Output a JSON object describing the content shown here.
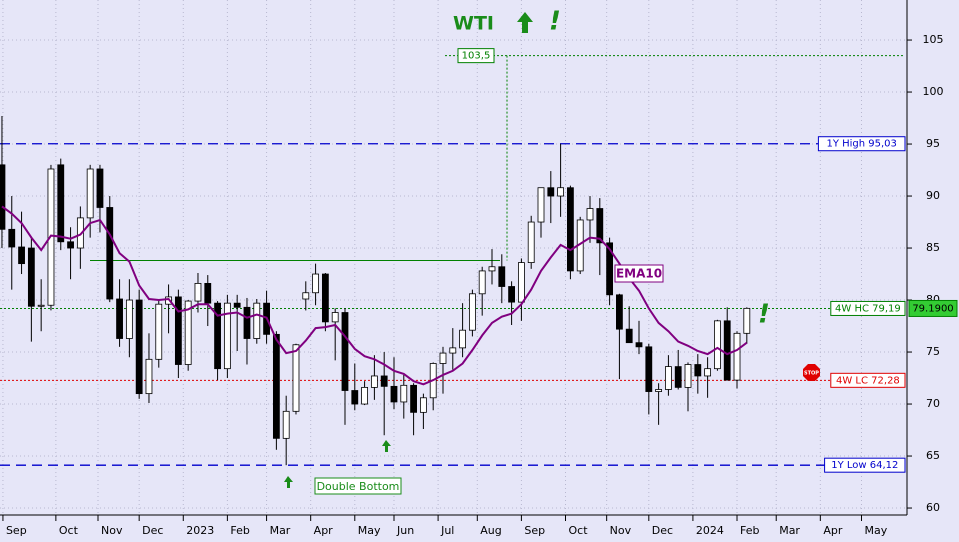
{
  "chart_data": {
    "type": "candlestick",
    "title": "WTI",
    "xlim": [
      -0.2,
      92.14
    ],
    "ylim": [
      59.33,
      108.85
    ],
    "yticks": [
      60,
      65,
      70,
      75,
      80,
      85,
      90,
      95,
      100,
      105
    ],
    "xticks": [
      {
        "value": 0.1,
        "label": "Sep"
      },
      {
        "value": 5.5,
        "label": "Oct"
      },
      {
        "value": 9.8,
        "label": "Nov"
      },
      {
        "value": 14,
        "label": "Dec"
      },
      {
        "value": 18.5,
        "label": "2023"
      },
      {
        "value": 23,
        "label": "Feb"
      },
      {
        "value": 27,
        "label": "Mar"
      },
      {
        "value": 31.5,
        "label": "Apr"
      },
      {
        "value": 36,
        "label": "May"
      },
      {
        "value": 40,
        "label": "Jun"
      },
      {
        "value": 44.5,
        "label": "Jul"
      },
      {
        "value": 48.5,
        "label": "Aug"
      },
      {
        "value": 53,
        "label": "Sep"
      },
      {
        "value": 57.5,
        "label": "Oct"
      },
      {
        "value": 61.7,
        "label": "Nov"
      },
      {
        "value": 66,
        "label": "Dec"
      },
      {
        "value": 70.5,
        "label": "2024"
      },
      {
        "value": 75,
        "label": "Feb"
      },
      {
        "value": 79,
        "label": "Mar"
      },
      {
        "value": 83.5,
        "label": "Apr"
      },
      {
        "value": 87.7,
        "label": "May"
      }
    ],
    "grid": true,
    "candles": {
      "up_color": "#ffffff",
      "down_color": "#000000",
      "open": [
        93,
        86.8,
        85.1,
        85,
        79.4,
        79.5,
        93,
        85.6,
        85,
        87.9,
        92.6,
        88.9,
        80.1,
        76.3,
        80,
        71,
        74.3,
        79.6,
        80.3,
        73.8,
        79.9,
        81.6,
        79.7,
        73.4,
        79.7,
        79.3,
        76.3,
        79.7,
        76.7,
        66.7,
        69.3,
        80.1,
        80.7,
        82.5,
        77.9,
        78.8,
        71.3,
        70,
        71.6,
        72.7,
        71.7,
        70.2,
        71.8,
        69.2,
        70.6,
        73.9,
        74.9,
        75.4,
        77.1,
        80.6,
        82.8,
        83.2,
        81.3,
        79.8,
        83.6,
        87.5,
        90.8,
        90,
        90.8,
        82.8,
        87.7,
        88.8,
        85.5,
        80.5,
        77.2,
        75.9,
        75.5,
        71.2,
        71.4,
        73.6,
        71.6,
        73.8,
        72.7,
        73.4,
        78,
        72.3,
        76.8
      ],
      "high": [
        97.7,
        90,
        88.5,
        86,
        82,
        93,
        93.6,
        87,
        89,
        93,
        93,
        90,
        82,
        82,
        81,
        76.8,
        80,
        81.5,
        81,
        80,
        82.6,
        82.4,
        79.9,
        80.5,
        80.5,
        80.2,
        80.1,
        80.9,
        77,
        70.8,
        75.8,
        81.8,
        83.5,
        82.6,
        79.2,
        79.2,
        73.9,
        72.2,
        74.7,
        75,
        74.5,
        72.8,
        72,
        71,
        74,
        75.5,
        77.3,
        79.7,
        81,
        83.2,
        84.9,
        84.4,
        81.8,
        84,
        88.1,
        90.5,
        92.4,
        95.03,
        91,
        88,
        90,
        89.8,
        86,
        80.6,
        79.4,
        78,
        75.8,
        72,
        74.7,
        75.2,
        74,
        74.8,
        74.5,
        78.1,
        79.3,
        77,
        79.3
      ],
      "low": [
        85,
        81,
        82.5,
        76,
        77,
        79,
        84.8,
        82,
        83,
        86,
        86.5,
        79.8,
        75.5,
        74.5,
        70.5,
        70.1,
        73.5,
        76.8,
        72.5,
        73.2,
        78.8,
        77.5,
        72.3,
        72.5,
        75.1,
        73.8,
        75.8,
        75.8,
        65.6,
        64.12,
        69,
        79,
        79.5,
        77,
        74.2,
        68,
        69.4,
        69.9,
        70.4,
        67,
        69.5,
        68.6,
        67,
        67.6,
        69.4,
        71,
        73.3,
        74.5,
        76.5,
        78.5,
        81.5,
        79.7,
        77.6,
        78,
        83,
        86,
        87.4,
        88,
        82,
        82.5,
        85.5,
        82.4,
        79.5,
        72.4,
        76,
        74.8,
        69,
        68,
        70.8,
        71.4,
        69.3,
        71,
        70.6,
        73.2,
        72.3,
        71.5,
        75.8
      ],
      "close": [
        86.8,
        85.1,
        83.5,
        79.4,
        79.5,
        92.6,
        85.6,
        85,
        87.9,
        92.6,
        88.9,
        80.1,
        76.3,
        80,
        71,
        74.3,
        79.6,
        80.3,
        73.8,
        79.9,
        81.6,
        79.7,
        73.4,
        79.7,
        79.3,
        76.3,
        79.7,
        76.7,
        66.7,
        69.3,
        75.7,
        80.7,
        82.5,
        77.9,
        78.8,
        71.3,
        70,
        71.6,
        72.7,
        71.7,
        70.2,
        71.8,
        69.2,
        70.6,
        73.9,
        74.9,
        75.4,
        77.1,
        80.6,
        82.8,
        83.2,
        81.3,
        79.8,
        83.6,
        87.5,
        90.8,
        90,
        90.8,
        82.8,
        87.7,
        88.8,
        85.5,
        80.5,
        77.2,
        75.9,
        75.5,
        71.2,
        71.4,
        73.6,
        71.6,
        73.8,
        72.7,
        73.4,
        78,
        72.3,
        76.8,
        79.2
      ]
    },
    "ema": {
      "name": "EMA10",
      "color": "#800080",
      "values": [
        89,
        88.3,
        87.4,
        86,
        84.8,
        86.2,
        86.1,
        85.9,
        86.3,
        87.4,
        87.7,
        86.3,
        84.5,
        83.7,
        81.4,
        80.1,
        80,
        80.1,
        78.9,
        79.1,
        79.6,
        79.6,
        78.5,
        78.7,
        78.8,
        78.3,
        78.6,
        78.3,
        76.2,
        74.9,
        75.1,
        76.1,
        77.3,
        77.4,
        77.6,
        76.5,
        75.3,
        74.6,
        74.3,
        73.8,
        73.2,
        72.9,
        72.2,
        71.9,
        72.3,
        72.8,
        73.2,
        73.9,
        75.2,
        76.6,
        77.8,
        78.4,
        78.7,
        79.6,
        81,
        82.8,
        84.1,
        85.3,
        84.8,
        85.4,
        86,
        85.9,
        84.9,
        83.5,
        82.1,
        80.9,
        79.2,
        77.8,
        77,
        76,
        75.6,
        75.1,
        74.8,
        75.4,
        74.8,
        75.2,
        75.9
      ]
    },
    "levels": [
      {
        "value": 95.03,
        "label": "1Y High 95,03",
        "color": "#0000cc",
        "style": "dashed"
      },
      {
        "value": 64.12,
        "label": "1Y Low 64,12",
        "color": "#0000cc",
        "style": "dashed"
      },
      {
        "value": 79.19,
        "label": "4W HC 79,19",
        "color": "#008000",
        "style": "dotted"
      },
      {
        "value": 72.28,
        "label": "4W LC 72,28",
        "color": "#e00000",
        "style": "dotted"
      }
    ],
    "resistance": {
      "value": 83.8,
      "color": "#008000"
    },
    "target": {
      "value": 103.5,
      "label": "103,5",
      "color": "#008000"
    },
    "last_price": {
      "value": 79.19,
      "label": "79.1900"
    },
    "annotations": {
      "ema_label": "EMA10",
      "pattern": "Double Bottom",
      "signal": "!",
      "signal_end": "!",
      "stop": "STOP"
    }
  }
}
